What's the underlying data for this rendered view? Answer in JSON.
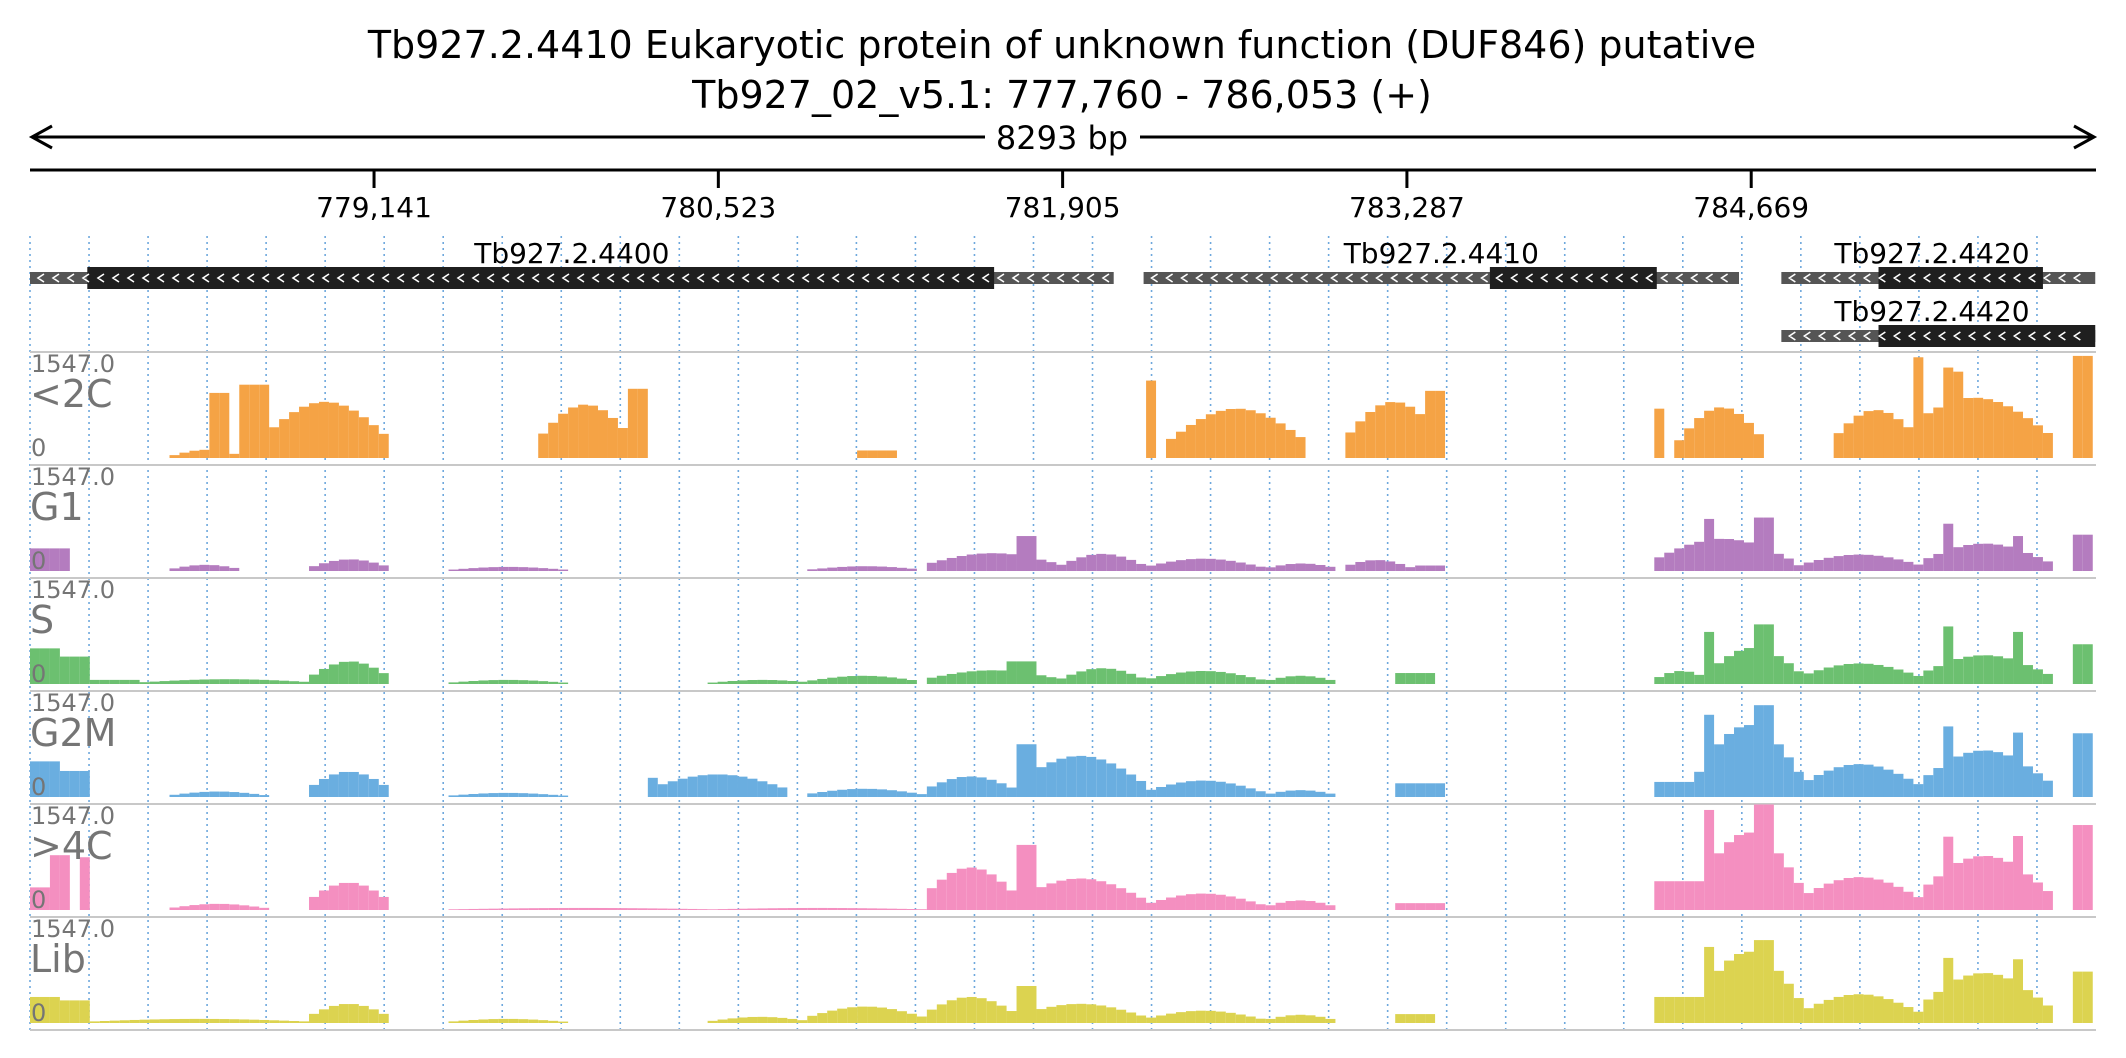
{
  "chart_data": {
    "type": "area",
    "title": "Tb927.2.4410  Eukaryotic protein of unknown function (DUF846)  putative",
    "subtitle": "Tb927_02_v5.1: 777,760 - 786,053 (+)",
    "span_label": "8293 bp",
    "region": {
      "chromosome": "Tb927_02_v5.1",
      "start": 777760,
      "end": 786053,
      "strand": "+"
    },
    "xlim": [
      777760,
      786053
    ],
    "x_ticks": [
      {
        "value": 779141,
        "label": "779,141"
      },
      {
        "value": 780523,
        "label": "780,523"
      },
      {
        "value": 781905,
        "label": "781,905"
      },
      {
        "value": 783287,
        "label": "783,287"
      },
      {
        "value": 784669,
        "label": "784,669"
      }
    ],
    "genes": [
      {
        "name": "Tb927.2.4400",
        "start": 777760,
        "end": 782110,
        "cds_start": 777990,
        "cds_end": 781630,
        "strand": "-",
        "row": 0
      },
      {
        "name": "Tb927.2.4410",
        "start": 782230,
        "end": 784620,
        "cds_start": 783620,
        "cds_end": 784290,
        "strand": "-",
        "row": 0
      },
      {
        "name": "Tb927.2.4420",
        "start": 784790,
        "end": 786050,
        "cds_start": 785180,
        "cds_end": 785840,
        "strand": "-",
        "row": 0
      },
      {
        "name": "Tb927.2.4420",
        "start": 784790,
        "end": 786050,
        "cds_start": 785180,
        "cds_end": 786050,
        "strand": "-",
        "row": 1
      }
    ],
    "ylim": [
      0,
      1547.0
    ],
    "y_max_label": "1547.0",
    "y_min_label": "0",
    "bin_size_bp": 40,
    "series": [
      {
        "name": "<2C",
        "color": "#f5a345",
        "peaks": [
          {
            "start": 778340,
            "end": 778600,
            "height": 120
          },
          {
            "start": 778490,
            "end": 778560,
            "height": 950
          },
          {
            "start": 778620,
            "end": 778700,
            "height": 1070
          },
          {
            "start": 778690,
            "end": 779200,
            "height": 820
          },
          {
            "start": 779800,
            "end": 780180,
            "height": 780
          },
          {
            "start": 780180,
            "end": 780230,
            "height": 1010
          },
          {
            "start": 781070,
            "end": 781250,
            "height": 110
          },
          {
            "start": 782240,
            "end": 782290,
            "height": 1130
          },
          {
            "start": 782330,
            "end": 782880,
            "height": 720
          },
          {
            "start": 783040,
            "end": 783430,
            "height": 820
          },
          {
            "start": 783360,
            "end": 783420,
            "height": 980
          },
          {
            "start": 784280,
            "end": 784320,
            "height": 720
          },
          {
            "start": 784380,
            "end": 784720,
            "height": 740
          },
          {
            "start": 784990,
            "end": 785350,
            "height": 700
          },
          {
            "start": 785250,
            "end": 785880,
            "height": 880
          },
          {
            "start": 785320,
            "end": 785360,
            "height": 1470
          },
          {
            "start": 785440,
            "end": 785480,
            "height": 1320
          },
          {
            "start": 785490,
            "end": 785530,
            "height": 1260
          },
          {
            "start": 785970,
            "end": 786020,
            "height": 1490
          }
        ]
      },
      {
        "name": "G1",
        "color": "#b47cbf",
        "peaks": [
          {
            "start": 777760,
            "end": 777900,
            "height": 330
          },
          {
            "start": 778330,
            "end": 778600,
            "height": 90
          },
          {
            "start": 778890,
            "end": 779200,
            "height": 170
          },
          {
            "start": 779460,
            "end": 779900,
            "height": 60
          },
          {
            "start": 780900,
            "end": 781330,
            "height": 70
          },
          {
            "start": 781350,
            "end": 781900,
            "height": 260
          },
          {
            "start": 781720,
            "end": 781780,
            "height": 510
          },
          {
            "start": 781900,
            "end": 782230,
            "height": 250
          },
          {
            "start": 782240,
            "end": 782700,
            "height": 180
          },
          {
            "start": 782720,
            "end": 783010,
            "height": 110
          },
          {
            "start": 783030,
            "end": 783300,
            "height": 160
          },
          {
            "start": 783310,
            "end": 783420,
            "height": 80
          },
          {
            "start": 784280,
            "end": 784830,
            "height": 470
          },
          {
            "start": 784470,
            "end": 784520,
            "height": 760
          },
          {
            "start": 784700,
            "end": 784760,
            "height": 780
          },
          {
            "start": 784860,
            "end": 785350,
            "height": 240
          },
          {
            "start": 785350,
            "end": 785860,
            "height": 400
          },
          {
            "start": 785440,
            "end": 785480,
            "height": 690
          },
          {
            "start": 785720,
            "end": 785760,
            "height": 510
          },
          {
            "start": 785960,
            "end": 786020,
            "height": 530
          }
        ]
      },
      {
        "name": "S",
        "color": "#6cc070",
        "peaks": [
          {
            "start": 777760,
            "end": 777880,
            "height": 520
          },
          {
            "start": 777880,
            "end": 778000,
            "height": 400
          },
          {
            "start": 778000,
            "end": 778200,
            "height": 60
          },
          {
            "start": 778210,
            "end": 778900,
            "height": 70
          },
          {
            "start": 778890,
            "end": 779200,
            "height": 330
          },
          {
            "start": 779450,
            "end": 779900,
            "height": 60
          },
          {
            "start": 780500,
            "end": 780900,
            "height": 60
          },
          {
            "start": 780880,
            "end": 781330,
            "height": 120
          },
          {
            "start": 781350,
            "end": 781900,
            "height": 200
          },
          {
            "start": 781700,
            "end": 781780,
            "height": 330
          },
          {
            "start": 781900,
            "end": 782230,
            "height": 230
          },
          {
            "start": 782240,
            "end": 782700,
            "height": 190
          },
          {
            "start": 782720,
            "end": 783000,
            "height": 120
          },
          {
            "start": 783230,
            "end": 783400,
            "height": 160
          },
          {
            "start": 784280,
            "end": 784500,
            "height": 190
          },
          {
            "start": 784470,
            "end": 784520,
            "height": 760
          },
          {
            "start": 784500,
            "end": 784860,
            "height": 530
          },
          {
            "start": 784700,
            "end": 784760,
            "height": 870
          },
          {
            "start": 784860,
            "end": 785350,
            "height": 300
          },
          {
            "start": 785350,
            "end": 785860,
            "height": 420
          },
          {
            "start": 785440,
            "end": 785480,
            "height": 840
          },
          {
            "start": 785720,
            "end": 785760,
            "height": 760
          },
          {
            "start": 785960,
            "end": 786020,
            "height": 580
          }
        ]
      },
      {
        "name": "G2M",
        "color": "#6aaee0",
        "peaks": [
          {
            "start": 777760,
            "end": 777880,
            "height": 520
          },
          {
            "start": 777880,
            "end": 777980,
            "height": 380
          },
          {
            "start": 778330,
            "end": 778700,
            "height": 80
          },
          {
            "start": 778880,
            "end": 779200,
            "height": 370
          },
          {
            "start": 779450,
            "end": 779900,
            "height": 60
          },
          {
            "start": 780240,
            "end": 780800,
            "height": 330
          },
          {
            "start": 780260,
            "end": 780280,
            "height": 280
          },
          {
            "start": 780880,
            "end": 781340,
            "height": 120
          },
          {
            "start": 781350,
            "end": 781720,
            "height": 300
          },
          {
            "start": 781720,
            "end": 782230,
            "height": 600
          },
          {
            "start": 781720,
            "end": 781780,
            "height": 770
          },
          {
            "start": 782240,
            "end": 782700,
            "height": 240
          },
          {
            "start": 782720,
            "end": 783000,
            "height": 100
          },
          {
            "start": 783230,
            "end": 783420,
            "height": 200
          },
          {
            "start": 784280,
            "end": 784460,
            "height": 220
          },
          {
            "start": 784460,
            "end": 784860,
            "height": 1050
          },
          {
            "start": 784470,
            "end": 784520,
            "height": 1200
          },
          {
            "start": 784700,
            "end": 784760,
            "height": 1340
          },
          {
            "start": 784860,
            "end": 785350,
            "height": 480
          },
          {
            "start": 785350,
            "end": 785860,
            "height": 680
          },
          {
            "start": 785440,
            "end": 785480,
            "height": 1030
          },
          {
            "start": 785720,
            "end": 785760,
            "height": 940
          },
          {
            "start": 785960,
            "end": 786020,
            "height": 930
          }
        ]
      },
      {
        "name": ">4C",
        "color": "#f48fc0",
        "peaks": [
          {
            "start": 777760,
            "end": 777820,
            "height": 330
          },
          {
            "start": 777840,
            "end": 777900,
            "height": 800
          },
          {
            "start": 777960,
            "end": 778000,
            "height": 770
          },
          {
            "start": 778330,
            "end": 778700,
            "height": 90
          },
          {
            "start": 778880,
            "end": 779200,
            "height": 400
          },
          {
            "start": 779460,
            "end": 780500,
            "height": 30
          },
          {
            "start": 780500,
            "end": 781350,
            "height": 30
          },
          {
            "start": 781350,
            "end": 781720,
            "height": 620
          },
          {
            "start": 781720,
            "end": 782230,
            "height": 460
          },
          {
            "start": 781720,
            "end": 781780,
            "height": 950
          },
          {
            "start": 782240,
            "end": 782700,
            "height": 240
          },
          {
            "start": 782720,
            "end": 783000,
            "height": 140
          },
          {
            "start": 783230,
            "end": 783420,
            "height": 100
          },
          {
            "start": 784280,
            "end": 784460,
            "height": 420
          },
          {
            "start": 784460,
            "end": 784860,
            "height": 1130
          },
          {
            "start": 784470,
            "end": 784520,
            "height": 1460
          },
          {
            "start": 784700,
            "end": 784760,
            "height": 1540
          },
          {
            "start": 784860,
            "end": 785350,
            "height": 480
          },
          {
            "start": 785350,
            "end": 785860,
            "height": 790
          },
          {
            "start": 785440,
            "end": 785480,
            "height": 1070
          },
          {
            "start": 785720,
            "end": 785760,
            "height": 1080
          },
          {
            "start": 785960,
            "end": 786020,
            "height": 1240
          }
        ]
      },
      {
        "name": "Lib",
        "color": "#dcd350",
        "peaks": [
          {
            "start": 777760,
            "end": 777880,
            "height": 380
          },
          {
            "start": 777880,
            "end": 778000,
            "height": 330
          },
          {
            "start": 778000,
            "end": 778880,
            "height": 60
          },
          {
            "start": 778880,
            "end": 779200,
            "height": 280
          },
          {
            "start": 779450,
            "end": 779900,
            "height": 60
          },
          {
            "start": 780500,
            "end": 780880,
            "height": 90
          },
          {
            "start": 780880,
            "end": 781350,
            "height": 240
          },
          {
            "start": 781350,
            "end": 781720,
            "height": 380
          },
          {
            "start": 781720,
            "end": 782230,
            "height": 280
          },
          {
            "start": 781720,
            "end": 781780,
            "height": 540
          },
          {
            "start": 782240,
            "end": 782700,
            "height": 180
          },
          {
            "start": 782720,
            "end": 783000,
            "height": 120
          },
          {
            "start": 783230,
            "end": 783400,
            "height": 130
          },
          {
            "start": 784280,
            "end": 784460,
            "height": 380
          },
          {
            "start": 784460,
            "end": 784860,
            "height": 1040
          },
          {
            "start": 784470,
            "end": 784520,
            "height": 1110
          },
          {
            "start": 784700,
            "end": 784760,
            "height": 1210
          },
          {
            "start": 784860,
            "end": 785350,
            "height": 420
          },
          {
            "start": 785350,
            "end": 785860,
            "height": 730
          },
          {
            "start": 785440,
            "end": 785480,
            "height": 950
          },
          {
            "start": 785720,
            "end": 785760,
            "height": 930
          },
          {
            "start": 785960,
            "end": 786020,
            "height": 750
          }
        ]
      }
    ],
    "colors": {
      "axis": "#000000",
      "track_label": "#757575",
      "gridline_dotted": "#6ea8dd",
      "gridline_solid": "#c8c8c8",
      "gene_cds": "#1f1f1f",
      "gene_utr": "#555555"
    }
  }
}
